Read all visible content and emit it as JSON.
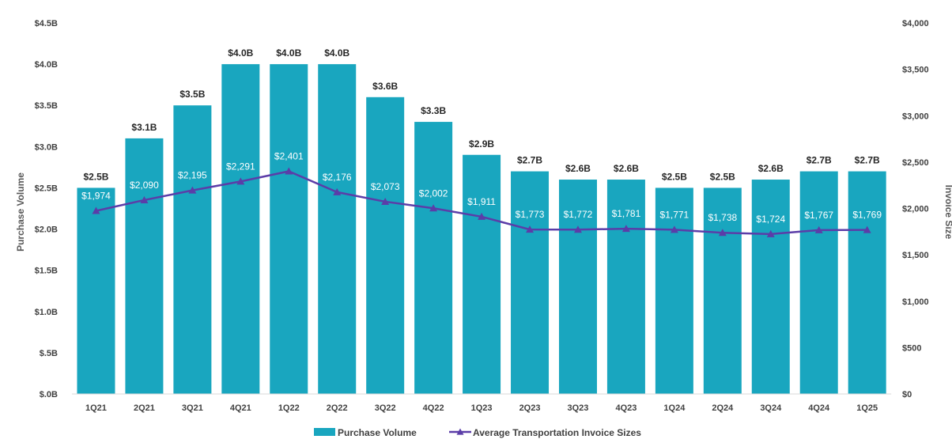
{
  "chart_data": {
    "type": "bar",
    "categories": [
      "1Q21",
      "2Q21",
      "3Q21",
      "4Q21",
      "1Q22",
      "2Q22",
      "3Q22",
      "4Q22",
      "1Q23",
      "2Q23",
      "3Q23",
      "4Q23",
      "1Q24",
      "2Q24",
      "3Q24",
      "4Q24",
      "1Q25"
    ],
    "series": [
      {
        "name": "Purchase Volume",
        "type": "bar",
        "axis": "left",
        "color": "#19A6BF",
        "values": [
          2.5,
          3.1,
          3.5,
          4.0,
          4.0,
          4.0,
          3.6,
          3.3,
          2.9,
          2.7,
          2.6,
          2.6,
          2.5,
          2.5,
          2.6,
          2.7,
          2.7
        ],
        "labels": [
          "$2.5B",
          "$3.1B",
          "$3.5B",
          "$4.0B",
          "$4.0B",
          "$4.0B",
          "$3.6B",
          "$3.3B",
          "$2.9B",
          "$2.7B",
          "$2.6B",
          "$2.6B",
          "$2.5B",
          "$2.5B",
          "$2.6B",
          "$2.7B",
          "$2.7B"
        ]
      },
      {
        "name": "Average Transportation Invoice Sizes",
        "type": "line",
        "axis": "right",
        "color": "#5B3DA8",
        "values": [
          1974,
          2090,
          2195,
          2291,
          2401,
          2176,
          2073,
          2002,
          1911,
          1773,
          1772,
          1781,
          1771,
          1738,
          1724,
          1767,
          1769
        ],
        "labels": [
          "$1,974",
          "$2,090",
          "$2,195",
          "$2,291",
          "$2,401",
          "$2,176",
          "$2,073",
          "$2,002",
          "$1,911",
          "$1,773",
          "$1,772",
          "$1,781",
          "$1,771",
          "$1,738",
          "$1,724",
          "$1,767",
          "$1,769"
        ]
      }
    ],
    "ylabel_left": "Purchase Volume",
    "ylabel_right": "Invoice Size",
    "ylim_left": [
      0,
      4.5
    ],
    "ylim_right": [
      0,
      4000
    ],
    "yticks_left": [
      {
        "value": 0,
        "label": "$.0B"
      },
      {
        "value": 0.5,
        "label": "$.5B"
      },
      {
        "value": 1.0,
        "label": "$1.0B"
      },
      {
        "value": 1.5,
        "label": "$1.5B"
      },
      {
        "value": 2.0,
        "label": "$2.0B"
      },
      {
        "value": 2.5,
        "label": "$2.5B"
      },
      {
        "value": 3.0,
        "label": "$3.0B"
      },
      {
        "value": 3.5,
        "label": "$3.5B"
      },
      {
        "value": 4.0,
        "label": "$4.0B"
      },
      {
        "value": 4.5,
        "label": "$4.5B"
      }
    ],
    "yticks_right": [
      {
        "value": 0,
        "label": "$0"
      },
      {
        "value": 500,
        "label": "$500"
      },
      {
        "value": 1000,
        "label": "$1,000"
      },
      {
        "value": 1500,
        "label": "$1,500"
      },
      {
        "value": 2000,
        "label": "$2,000"
      },
      {
        "value": 2500,
        "label": "$2,500"
      },
      {
        "value": 3000,
        "label": "$3,000"
      },
      {
        "value": 3500,
        "label": "$3,500"
      },
      {
        "value": 4000,
        "label": "$4,000"
      }
    ],
    "grid": false,
    "legend_position": "bottom-center"
  }
}
